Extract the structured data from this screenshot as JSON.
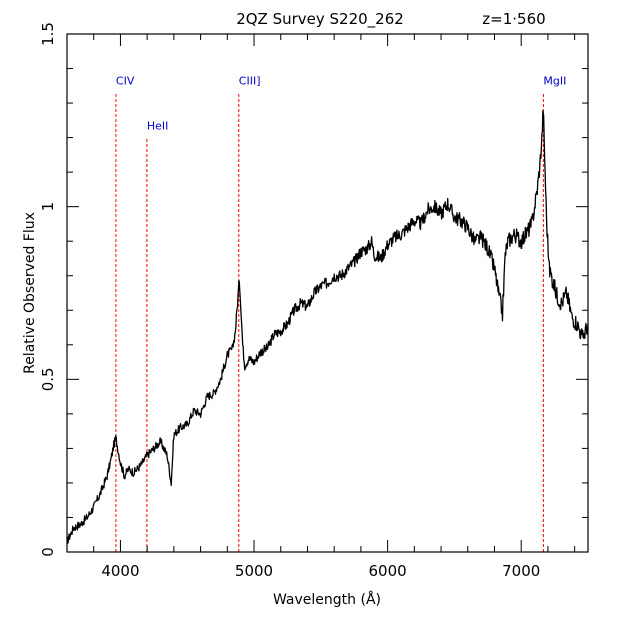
{
  "chart_data": {
    "type": "line",
    "title": "2QZ Survey S220_262",
    "redshift_label": "z=1·560",
    "xlabel": "Wavelength (Å)",
    "ylabel": "Relative Observed Flux",
    "xlim": [
      3600,
      7500
    ],
    "ylim": [
      0,
      1.5
    ],
    "x_ticks": [
      4000,
      5000,
      6000,
      7000
    ],
    "x_tick_labels": [
      "4000",
      "5000",
      "6000",
      "7000"
    ],
    "y_ticks": [
      0,
      0.5,
      1,
      1.5
    ],
    "y_tick_labels": [
      "0",
      "0.5",
      "1",
      "1.5"
    ],
    "grid": false,
    "line_color": "#000000",
    "marker_color": "#ff0000",
    "marker_label_color": "#0000cc",
    "emission_lines": [
      {
        "label": "CIV",
        "wavelength": 3966,
        "top": 1.33
      },
      {
        "label": "HeII",
        "wavelength": 4198,
        "top": 1.2
      },
      {
        "label": "CIII]",
        "wavelength": 4886,
        "top": 1.33
      },
      {
        "label": "MgII",
        "wavelength": 7166,
        "top": 1.33
      }
    ],
    "series": [
      {
        "x": [
          3600,
          3650,
          3700,
          3750,
          3800,
          3850,
          3900,
          3930,
          3950,
          3965,
          3980,
          4000,
          4030,
          4060,
          4100,
          4150,
          4200,
          4250,
          4300,
          4350,
          4380,
          4400,
          4450,
          4500,
          4550,
          4600,
          4650,
          4700,
          4750,
          4800,
          4840,
          4860,
          4880,
          4890,
          4900,
          4915,
          4930,
          4960,
          5000,
          5050,
          5100,
          5150,
          5200,
          5250,
          5300,
          5350,
          5400,
          5450,
          5500,
          5550,
          5600,
          5650,
          5700,
          5750,
          5800,
          5850,
          5880,
          5900,
          5950,
          6000,
          6050,
          6100,
          6150,
          6200,
          6250,
          6300,
          6350,
          6400,
          6450,
          6500,
          6550,
          6600,
          6650,
          6700,
          6750,
          6800,
          6830,
          6860,
          6880,
          6900,
          6950,
          7000,
          7050,
          7080,
          7100,
          7120,
          7140,
          7155,
          7165,
          7175,
          7190,
          7210,
          7240,
          7270,
          7300,
          7340,
          7380,
          7420,
          7460,
          7500
        ],
        "y": [
          0.03,
          0.07,
          0.08,
          0.1,
          0.13,
          0.17,
          0.22,
          0.27,
          0.31,
          0.33,
          0.3,
          0.26,
          0.22,
          0.24,
          0.23,
          0.25,
          0.28,
          0.3,
          0.32,
          0.28,
          0.2,
          0.34,
          0.36,
          0.37,
          0.41,
          0.4,
          0.45,
          0.46,
          0.5,
          0.57,
          0.59,
          0.64,
          0.74,
          0.79,
          0.72,
          0.6,
          0.54,
          0.56,
          0.55,
          0.58,
          0.59,
          0.63,
          0.64,
          0.66,
          0.7,
          0.72,
          0.71,
          0.75,
          0.77,
          0.78,
          0.8,
          0.8,
          0.82,
          0.84,
          0.87,
          0.88,
          0.9,
          0.86,
          0.85,
          0.89,
          0.91,
          0.92,
          0.94,
          0.96,
          0.95,
          0.99,
          1.0,
          0.98,
          1.01,
          0.97,
          0.96,
          0.94,
          0.9,
          0.91,
          0.88,
          0.82,
          0.75,
          0.69,
          0.86,
          0.9,
          0.92,
          0.9,
          0.93,
          0.95,
          1.0,
          1.05,
          1.12,
          1.2,
          1.29,
          1.15,
          0.96,
          0.82,
          0.78,
          0.74,
          0.72,
          0.75,
          0.68,
          0.66,
          0.62,
          0.66
        ]
      }
    ]
  }
}
